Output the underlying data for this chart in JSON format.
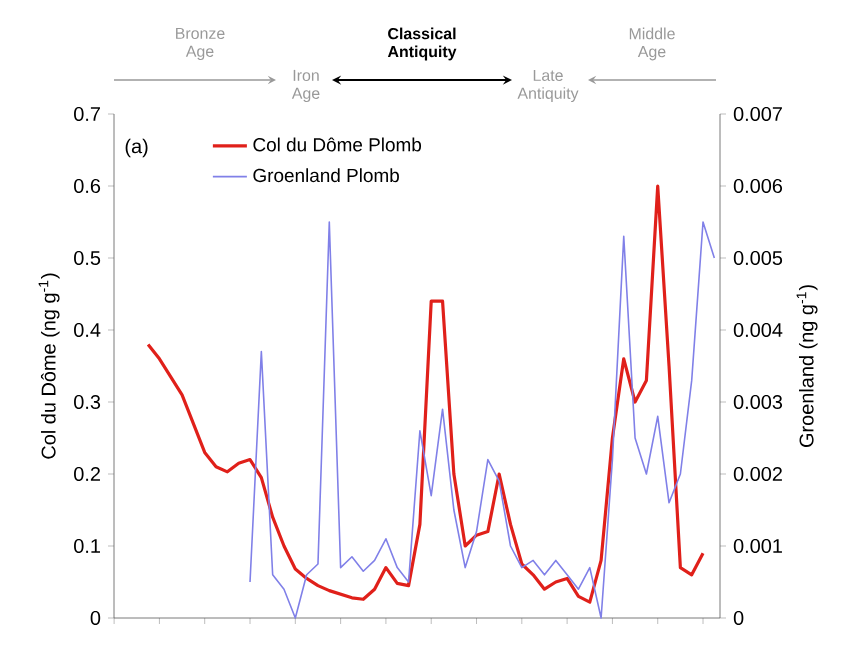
{
  "chart_data": {
    "type": "line",
    "categories": [
      null,
      null,
      null,
      null,
      null,
      null,
      null,
      null,
      null,
      null,
      null,
      null,
      null,
      null,
      null,
      null,
      null,
      null,
      null,
      null,
      null,
      null,
      null,
      null,
      null,
      null,
      null,
      null,
      null,
      null,
      null,
      null,
      null,
      null,
      null,
      null,
      null,
      null,
      null,
      null,
      null,
      null,
      null,
      null,
      null,
      null,
      null,
      null,
      null,
      null,
      null,
      null,
      null,
      null
    ],
    "series": [
      {
        "name": "Col du Dôme Plomb",
        "color": "#e0201a",
        "values": [
          null,
          null,
          null,
          0.38,
          0.36,
          0.335,
          0.31,
          0.27,
          0.23,
          0.21,
          0.203,
          0.215,
          0.22,
          0.195,
          0.14,
          0.1,
          0.068,
          0.055,
          0.045,
          0.038,
          0.033,
          0.028,
          0.026,
          0.04,
          0.07,
          0.048,
          0.045,
          0.13,
          0.44,
          0.44,
          0.2,
          0.1,
          0.115,
          0.12,
          0.2,
          0.13,
          0.075,
          0.06,
          0.04,
          0.05,
          0.055,
          0.03,
          0.022,
          0.08,
          0.25,
          0.36,
          0.3,
          0.33,
          0.6,
          0.35,
          0.07,
          0.06,
          0.09,
          null
        ]
      },
      {
        "name": "Groenland Plomb",
        "color": "#8080e8",
        "axis": "y2",
        "values": [
          null,
          null,
          null,
          null,
          null,
          null,
          null,
          null,
          null,
          null,
          null,
          null,
          0.0005,
          0.0037,
          0.0006,
          0.0004,
          0.0,
          0.0006,
          0.00075,
          0.0055,
          0.0007,
          0.00085,
          0.00065,
          0.0008,
          0.0011,
          0.0007,
          0.0005,
          0.0026,
          0.0017,
          0.0029,
          0.0015,
          0.0007,
          0.0012,
          0.0022,
          0.0019,
          0.001,
          0.0007,
          0.0008,
          0.0006,
          0.0008,
          0.0006,
          0.0004,
          0.0007,
          0.0,
          0.0022,
          0.0053,
          0.0025,
          0.002,
          0.0028,
          0.0016,
          0.002,
          0.0033,
          0.0055,
          0.005
        ]
      }
    ],
    "ylim": [
      0,
      0.7
    ],
    "yticks": [
      0,
      0.1,
      0.2,
      0.3,
      0.4,
      0.5,
      0.6,
      0.7
    ],
    "y2lim": [
      0,
      0.007
    ],
    "y2ticks": [
      0,
      0.001,
      0.002,
      0.003,
      0.004,
      0.005,
      0.006,
      0.007
    ],
    "ylabel": "Col du Dôme (ng g$^{-1}$)",
    "y2label": "Groenland (ng g$^{-1}$)",
    "legend": "top left",
    "annotations": [
      "(a)",
      "Bronze Age",
      "Iron Age",
      "Classical Antiquity",
      "Late Antiquity",
      "Middle Age"
    ]
  }
}
